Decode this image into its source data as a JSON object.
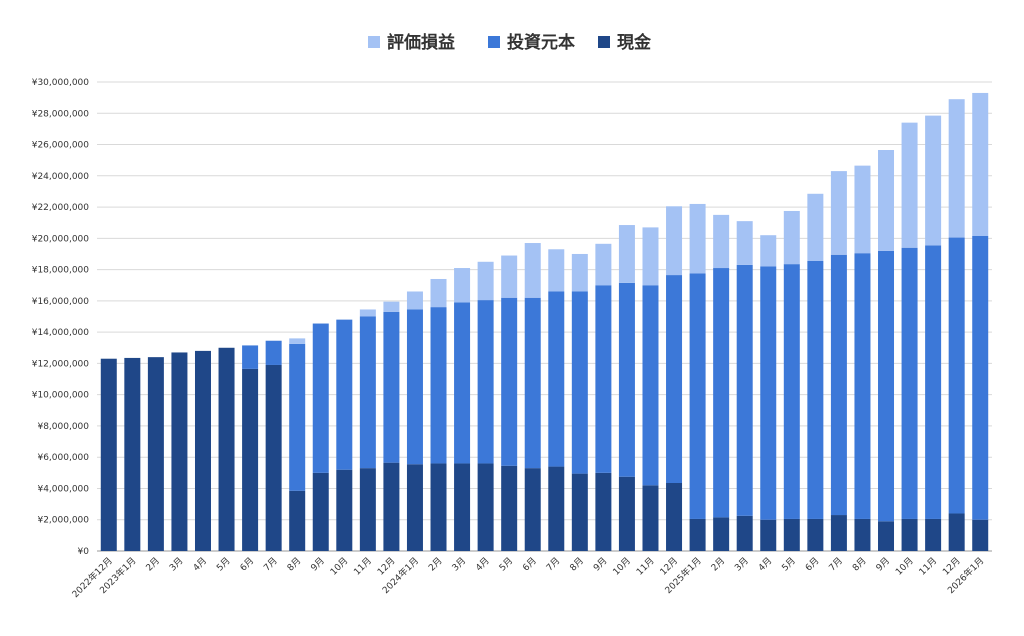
{
  "chart_data": {
    "type": "bar",
    "stacked": true,
    "title": "",
    "xlabel": "",
    "ylabel": "",
    "ylim": [
      0,
      30000000
    ],
    "yticks": [
      0,
      2000000,
      4000000,
      6000000,
      8000000,
      10000000,
      12000000,
      14000000,
      16000000,
      18000000,
      20000000,
      22000000,
      24000000,
      26000000,
      28000000,
      30000000
    ],
    "ytick_labels": [
      "¥0",
      "¥2,000,000",
      "¥4,000,000",
      "¥6,000,000",
      "¥8,000,000",
      "¥10,000,000",
      "¥12,000,000",
      "¥14,000,000",
      "¥16,000,000",
      "¥18,000,000",
      "¥20,000,000",
      "¥22,000,000",
      "¥24,000,000",
      "¥26,000,000",
      "¥28,000,000",
      "¥30,000,000"
    ],
    "grid": true,
    "legend_position": "top-center",
    "legend": [
      "評価損益",
      "投資元本",
      "現金"
    ],
    "categories": [
      "2022年12月",
      "2023年1月",
      "2月",
      "3月",
      "4月",
      "5月",
      "6月",
      "7月",
      "8月",
      "9月",
      "10月",
      "11月",
      "12月",
      "2024年1月",
      "2月",
      "3月",
      "4月",
      "5月",
      "6月",
      "7月",
      "8月",
      "9月",
      "10月",
      "11月",
      "12月",
      "2025年1月",
      "2月",
      "3月",
      "4月",
      "5月",
      "6月",
      "7月",
      "8月",
      "9月",
      "10月",
      "11月",
      "12月",
      "2026年1月"
    ],
    "series": [
      {
        "name": "現金",
        "color": "#1f4788",
        "values": [
          12300000,
          12350000,
          12400000,
          12700000,
          12800000,
          13000000,
          11650000,
          11900000,
          3850000,
          5000000,
          5200000,
          5300000,
          5650000,
          5550000,
          5600000,
          5600000,
          5600000,
          5450000,
          5300000,
          5400000,
          4950000,
          5000000,
          4750000,
          4200000,
          4350000,
          2050000,
          2150000,
          2250000,
          2000000,
          2050000,
          2050000,
          2300000,
          2050000,
          1900000,
          2050000,
          2050000,
          2400000,
          2000000
        ]
      },
      {
        "name": "投資元本",
        "color": "#3c78d8",
        "values": [
          0,
          0,
          0,
          0,
          0,
          0,
          1500000,
          1550000,
          9400000,
          9550000,
          9600000,
          9700000,
          9650000,
          9900000,
          10000000,
          10300000,
          10450000,
          10750000,
          10900000,
          11200000,
          11650000,
          12000000,
          12400000,
          12800000,
          13300000,
          15700000,
          15950000,
          16050000,
          16200000,
          16300000,
          16500000,
          16650000,
          17000000,
          17300000,
          17350000,
          17500000,
          17650000,
          18150000
        ]
      },
      {
        "name": "評価損益",
        "color": "#a4c2f4",
        "values": [
          0,
          0,
          0,
          0,
          0,
          0,
          0,
          0,
          350000,
          0,
          0,
          450000,
          650000,
          1150000,
          1800000,
          2200000,
          2450000,
          2700000,
          3500000,
          2700000,
          2400000,
          2650000,
          3700000,
          3700000,
          4400000,
          4450000,
          3400000,
          2800000,
          2000000,
          3400000,
          4300000,
          5350000,
          5600000,
          6450000,
          8000000,
          8300000,
          8850000,
          9150000
        ]
      }
    ]
  }
}
